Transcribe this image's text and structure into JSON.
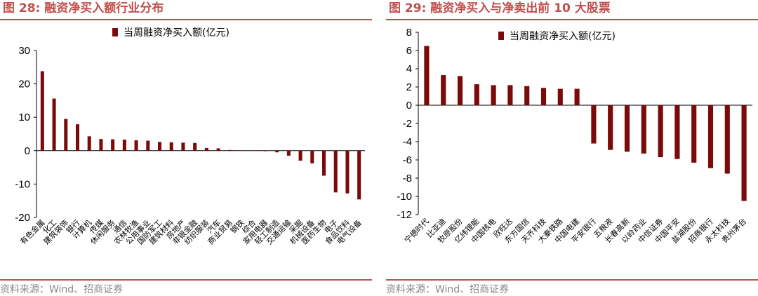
{
  "colors": {
    "accent": "#c0504d",
    "bar": "#7b0a0a",
    "source": "#888888"
  },
  "source_text": "资料来源：Wind、招商证券",
  "chart_data": [
    {
      "type": "bar",
      "figure_label": "图 28:",
      "title": "融资净买入额行业分布",
      "legend": "当周融资净买入额(亿元)",
      "ylim": [
        -20,
        30
      ],
      "yticks": [
        30,
        20,
        10,
        0,
        -10,
        -20
      ],
      "categories": [
        "有色金属",
        "化工",
        "建筑装饰",
        "银行",
        "计算机",
        "传媒",
        "休闲服务",
        "通信",
        "农林牧渔",
        "公用事业",
        "国防军工",
        "建筑材料",
        "房地产",
        "非银金融",
        "纺织服装",
        "汽车",
        "商业贸易",
        "钢铁",
        "综合",
        "家用电器",
        "轻工制造",
        "交通运输",
        "采掘",
        "机械设备",
        "医药生物",
        "电子",
        "食品饮料",
        "电气设备"
      ],
      "values": [
        23.8,
        15.6,
        9.5,
        7.9,
        4.3,
        3.5,
        3.4,
        3.3,
        3.1,
        3.0,
        2.6,
        2.5,
        2.4,
        2.3,
        0.8,
        0.7,
        0.2,
        0.1,
        0.1,
        -0.1,
        -0.5,
        -1.5,
        -3.0,
        -3.8,
        -7.5,
        -12.5,
        -12.8,
        -14.6
      ]
    },
    {
      "type": "bar",
      "figure_label": "图 29:",
      "title": "融资净买入与净卖出前 10 大股票",
      "legend": "当周融资净买入额(亿元)",
      "ylim": [
        -12,
        8
      ],
      "yticks": [
        8,
        6,
        4,
        2,
        0,
        -2,
        -4,
        -6,
        -8,
        -10,
        -12
      ],
      "categories": [
        "宁德时代",
        "比亚迪",
        "牧原股份",
        "亿纬锂能",
        "中国核电",
        "欣旺达",
        "东方国信",
        "天齐科技",
        "大秦铁路",
        "中国电建",
        "平安银行",
        "五粮液",
        "长春高新",
        "以岭药业",
        "中信证券",
        "中国平安",
        "盐湖股份",
        "招商银行",
        "永太科技",
        "贵州茅台"
      ],
      "values": [
        6.5,
        3.3,
        3.2,
        2.3,
        2.2,
        2.2,
        2.1,
        1.9,
        1.8,
        1.8,
        -4.2,
        -4.9,
        -5.1,
        -5.3,
        -5.7,
        -5.9,
        -6.3,
        -6.9,
        -7.5,
        -10.5
      ]
    }
  ]
}
